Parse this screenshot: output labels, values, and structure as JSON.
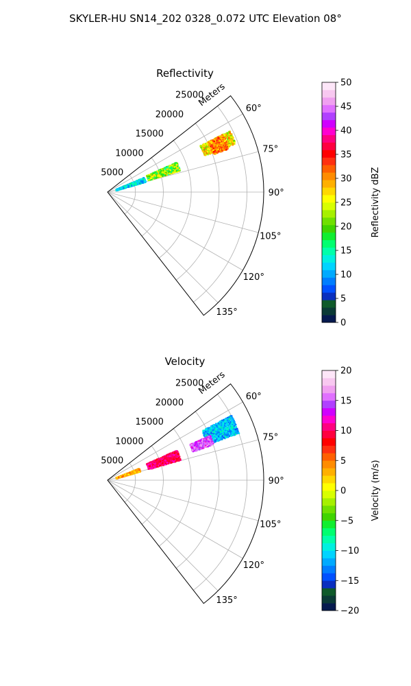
{
  "figure": {
    "suptitle": "SKYLER-HU  SN14_202  0328_0.072 UTC Elevation 08°"
  },
  "chart_data": [
    {
      "type": "heatmap",
      "subtype": "polar-sector (PPI)",
      "title": "Reflectivity",
      "radial_label": "Meters",
      "r_ticks": [
        5000,
        10000,
        15000,
        20000,
        25000
      ],
      "r_max": 28000,
      "theta_ticks": [
        "60°",
        "75°",
        "90°",
        "105°",
        "120°",
        "135°"
      ],
      "theta_tick_values": [
        60,
        75,
        90,
        105,
        120,
        135
      ],
      "theta_range": [
        52,
        142
      ],
      "grid": true,
      "colorbar": {
        "label": "Reflectivity dBZ",
        "vmin": 0,
        "vmax": 50,
        "ticks": [
          0,
          5,
          10,
          15,
          20,
          25,
          30,
          35,
          40,
          45,
          50
        ],
        "ticks_text": [
          "0",
          "5",
          "10",
          "15",
          "20",
          "25",
          "30",
          "35",
          "40",
          "45",
          "50"
        ],
        "colors": [
          "#061a4f",
          "#0b3a36",
          "#0f5a2a",
          "#0a2fbf",
          "#0050ff",
          "#007dff",
          "#00aaff",
          "#00d4ff",
          "#00f0e0",
          "#00ffaa",
          "#00ff70",
          "#10ee30",
          "#40d400",
          "#70e000",
          "#a6f000",
          "#d8ff00",
          "#ffff00",
          "#ffd800",
          "#ffb000",
          "#ff8c00",
          "#ff6000",
          "#ff3010",
          "#ff0000",
          "#ff0040",
          "#ff0080",
          "#ff00d0",
          "#d000ff",
          "#b040ff",
          "#e070ff",
          "#f0a0f0",
          "#f8c8f0",
          "#fde6f8"
        ]
      },
      "echoes": [
        {
          "az": [
            63,
            69
          ],
          "range_km": [
            18.5,
            24.5
          ],
          "value_dbz": [
            20,
            32
          ]
        },
        {
          "az": [
            63,
            70
          ],
          "range_km": [
            20,
            23
          ],
          "value_dbz": [
            26,
            35
          ]
        },
        {
          "az": [
            66,
            73
          ],
          "range_km": [
            7.5,
            13.5
          ],
          "value_dbz": [
            15,
            28
          ]
        },
        {
          "az": [
            67,
            74
          ],
          "range_km": [
            1.5,
            7
          ],
          "value_dbz": [
            8,
            16
          ]
        }
      ]
    },
    {
      "type": "heatmap",
      "subtype": "polar-sector (PPI)",
      "title": "Velocity",
      "radial_label": "Meters",
      "r_ticks": [
        5000,
        10000,
        15000,
        20000,
        25000
      ],
      "r_max": 28000,
      "theta_ticks": [
        "60°",
        "75°",
        "90°",
        "105°",
        "120°",
        "135°"
      ],
      "theta_tick_values": [
        60,
        75,
        90,
        105,
        120,
        135
      ],
      "theta_range": [
        52,
        142
      ],
      "grid": true,
      "colorbar": {
        "label": "Velocity (m/s)",
        "vmin": -20,
        "vmax": 20,
        "ticks": [
          -20,
          -15,
          -10,
          -5,
          0,
          5,
          10,
          15,
          20
        ],
        "ticks_text": [
          "−20",
          "−15",
          "−10",
          "−5",
          "0",
          "5",
          "10",
          "15",
          "20"
        ],
        "colors": [
          "#061a4f",
          "#0b3a36",
          "#0f5a2a",
          "#0a2fbf",
          "#0050ff",
          "#007dff",
          "#00aaff",
          "#00d4ff",
          "#00f0e0",
          "#00ffaa",
          "#00ff70",
          "#10ee30",
          "#40d400",
          "#70e000",
          "#a6f000",
          "#d8ff00",
          "#ffff00",
          "#ffd800",
          "#ffb000",
          "#ff8c00",
          "#ff6000",
          "#ff3010",
          "#ff0000",
          "#ff0040",
          "#ff0080",
          "#ff00d0",
          "#d000ff",
          "#b040ff",
          "#e070ff",
          "#f0a0f0",
          "#f8c8f0",
          "#fde6f8"
        ]
      },
      "echoes": [
        {
          "az": [
            62,
            70
          ],
          "range_km": [
            19,
            25
          ],
          "value_ms": [
            -14,
            -8
          ]
        },
        {
          "az": [
            66,
            71
          ],
          "range_km": [
            16,
            20
          ],
          "value_ms": [
            12,
            17
          ]
        },
        {
          "az": [
            66,
            74
          ],
          "range_km": [
            7.5,
            13.5
          ],
          "value_ms": [
            8,
            12
          ]
        },
        {
          "az": [
            68,
            74
          ],
          "range_km": [
            1.5,
            6
          ],
          "value_ms": [
            0,
            6
          ]
        }
      ]
    }
  ]
}
